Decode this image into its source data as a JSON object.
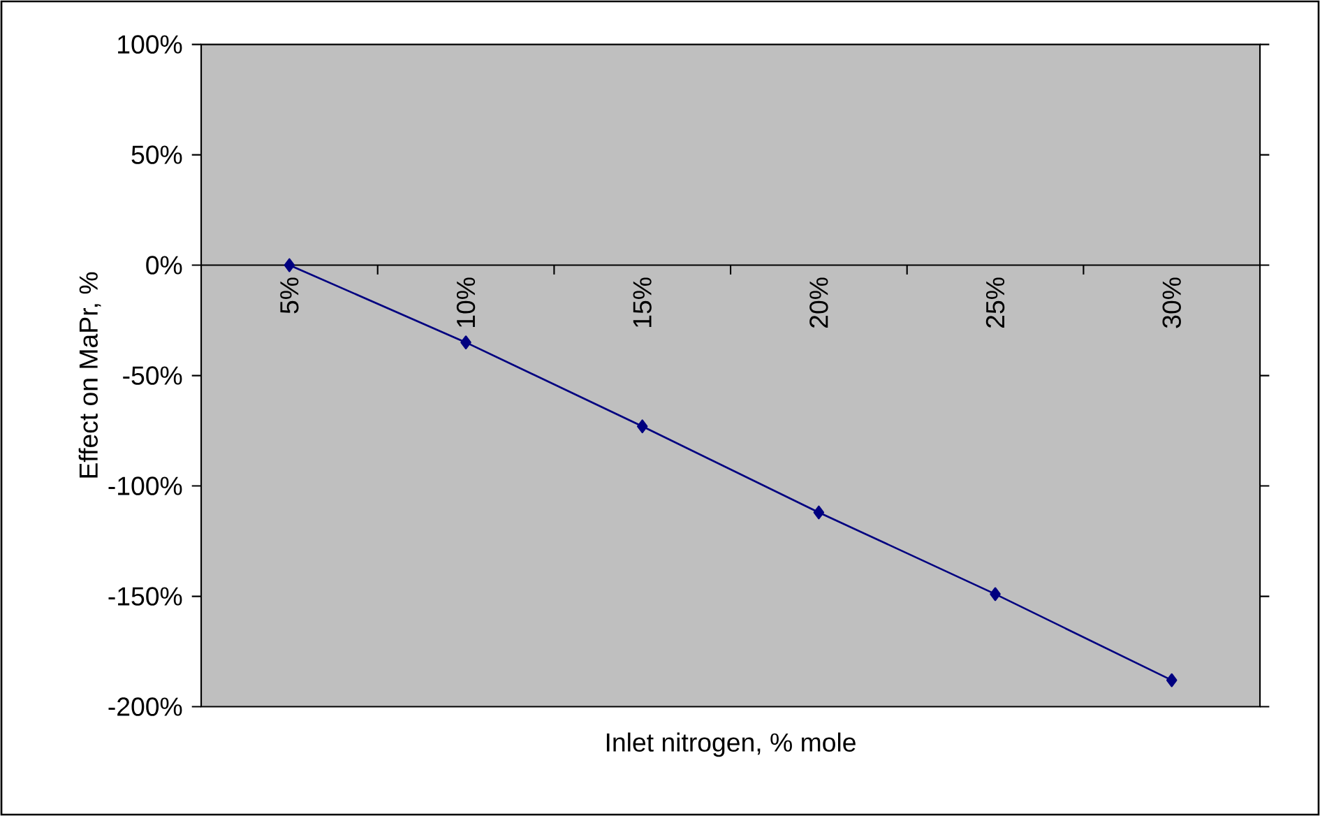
{
  "chart_data": {
    "type": "line",
    "xlabel": "Inlet nitrogen, % mole",
    "ylabel": "Effect on MaPr, %",
    "categories": [
      "5%",
      "10%",
      "15%",
      "20%",
      "25%",
      "30%"
    ],
    "series": [
      {
        "color": "#000080",
        "values": [
          0,
          -35,
          -73,
          -112,
          -149,
          -188
        ]
      }
    ],
    "ylim": [
      -200,
      100
    ],
    "yticks": [
      {
        "value": 100,
        "label": "100%"
      },
      {
        "value": 50,
        "label": "50%"
      },
      {
        "value": 0,
        "label": "0%"
      },
      {
        "value": -50,
        "label": "-50%"
      },
      {
        "value": -100,
        "label": "-100%"
      },
      {
        "value": -150,
        "label": "-150%"
      },
      {
        "value": -200,
        "label": "-200%"
      }
    ],
    "marker": "diamond",
    "line_style": "solid"
  }
}
